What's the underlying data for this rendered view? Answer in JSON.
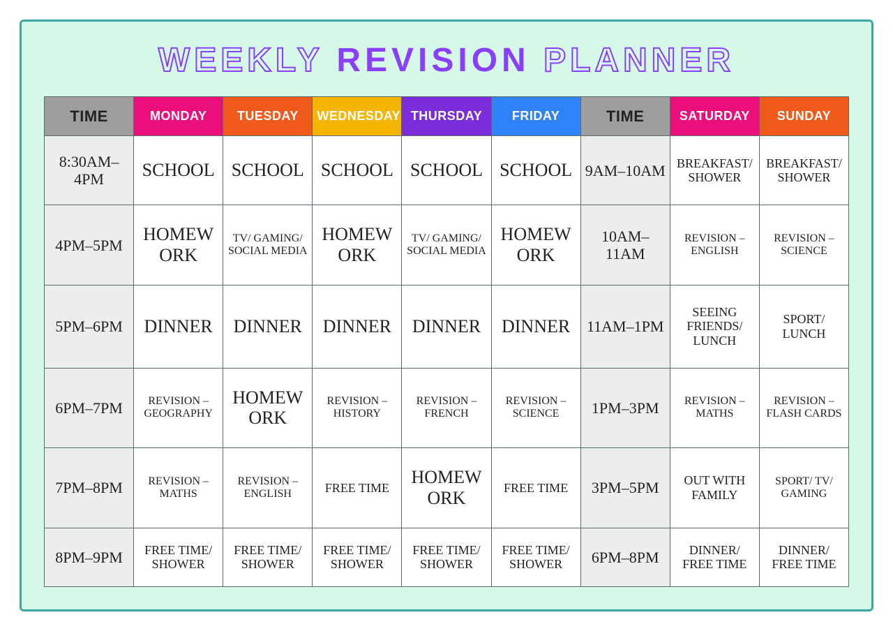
{
  "title": {
    "w1": "WEEKLY",
    "w2": "REVISION",
    "w3": "PLANNER"
  },
  "headers": {
    "colors": {
      "time": "#9e9e9e",
      "mon": "#ec0e7b",
      "tue": "#f05a1a",
      "wed": "#f4b400",
      "thu": "#7b2cdb",
      "fri": "#2f82f7",
      "sat": "#ec0e7b",
      "sun": "#f05a1a"
    },
    "labels": {
      "time": "TIME",
      "mon": "MONDAY",
      "tue": "TUESDAY",
      "wed": "WEDNESDAY",
      "thu": "THURSDAY",
      "fri": "FRIDAY",
      "sat": "SATURDAY",
      "sun": "SUNDAY"
    }
  },
  "rows": [
    {
      "timeA": "8:30AM–4PM",
      "mon": "SCHOOL",
      "tue": "SCHOOL",
      "wed": "SCHOOL",
      "thu": "SCHOOL",
      "fri": "SCHOOL",
      "timeB": "9AM–10AM",
      "sat": "BREAKFAST/ SHOWER",
      "sun": "BREAKFAST/ SHOWER"
    },
    {
      "timeA": "4PM–5PM",
      "mon": "HOMEWORK",
      "tue": "TV/ GAMING/ SOCIAL MEDIA",
      "wed": "HOMEWORK",
      "thu": "TV/ GAMING/ SOCIAL MEDIA",
      "fri": "HOMEWORK",
      "timeB": "10AM–11AM",
      "sat": "REVISION – ENGLISH",
      "sun": "REVISION – SCIENCE"
    },
    {
      "timeA": "5PM–6PM",
      "mon": "DINNER",
      "tue": "DINNER",
      "wed": "DINNER",
      "thu": "DINNER",
      "fri": "DINNER",
      "timeB": "11AM–1PM",
      "sat": "SEEING FRIENDS/ LUNCH",
      "sun": "SPORT/ LUNCH"
    },
    {
      "timeA": "6PM–7PM",
      "mon": "REVISION – GEOGRAPHY",
      "tue": "HOMEWORK",
      "wed": "REVISION – HISTORY",
      "thu": "REVISION – FRENCH",
      "fri": "REVISION – SCIENCE",
      "timeB": "1PM–3PM",
      "sat": "REVISION – MATHS",
      "sun": "REVISION – FLASH CARDS"
    },
    {
      "timeA": "7PM–8PM",
      "mon": "REVISION – MATHS",
      "tue": "REVISION – ENGLISH",
      "wed": "FREE TIME",
      "thu": "HOMEWORK",
      "fri": "FREE TIME",
      "timeB": "3PM–5PM",
      "sat": "OUT WITH FAMILY",
      "sun": "SPORT/ TV/ GAMING"
    },
    {
      "timeA": "8PM–9PM",
      "mon": "FREE TIME/ SHOWER",
      "tue": "FREE TIME/ SHOWER",
      "wed": "FREE TIME/ SHOWER",
      "thu": "FREE TIME/ SHOWER",
      "fri": "FREE TIME/ SHOWER",
      "timeB": "6PM–8PM",
      "sat": "DINNER/ FREE TIME",
      "sun": "DINNER/ FREE TIME"
    }
  ],
  "styling": {
    "background_color": "#d6f8e8",
    "border_color": "#3ba8a0",
    "cell_border_color": "#5a6b6b",
    "time_cell_bg": "#ededed",
    "title_color": "#8a3ffc",
    "title_fontsize": 48,
    "header_fontsize": 18,
    "cell_fontsize_big": 26,
    "cell_fontsize_med": 18,
    "cell_fontsize_small": 16,
    "font_family_body": "Comic Sans MS",
    "font_family_title": "Arial"
  }
}
